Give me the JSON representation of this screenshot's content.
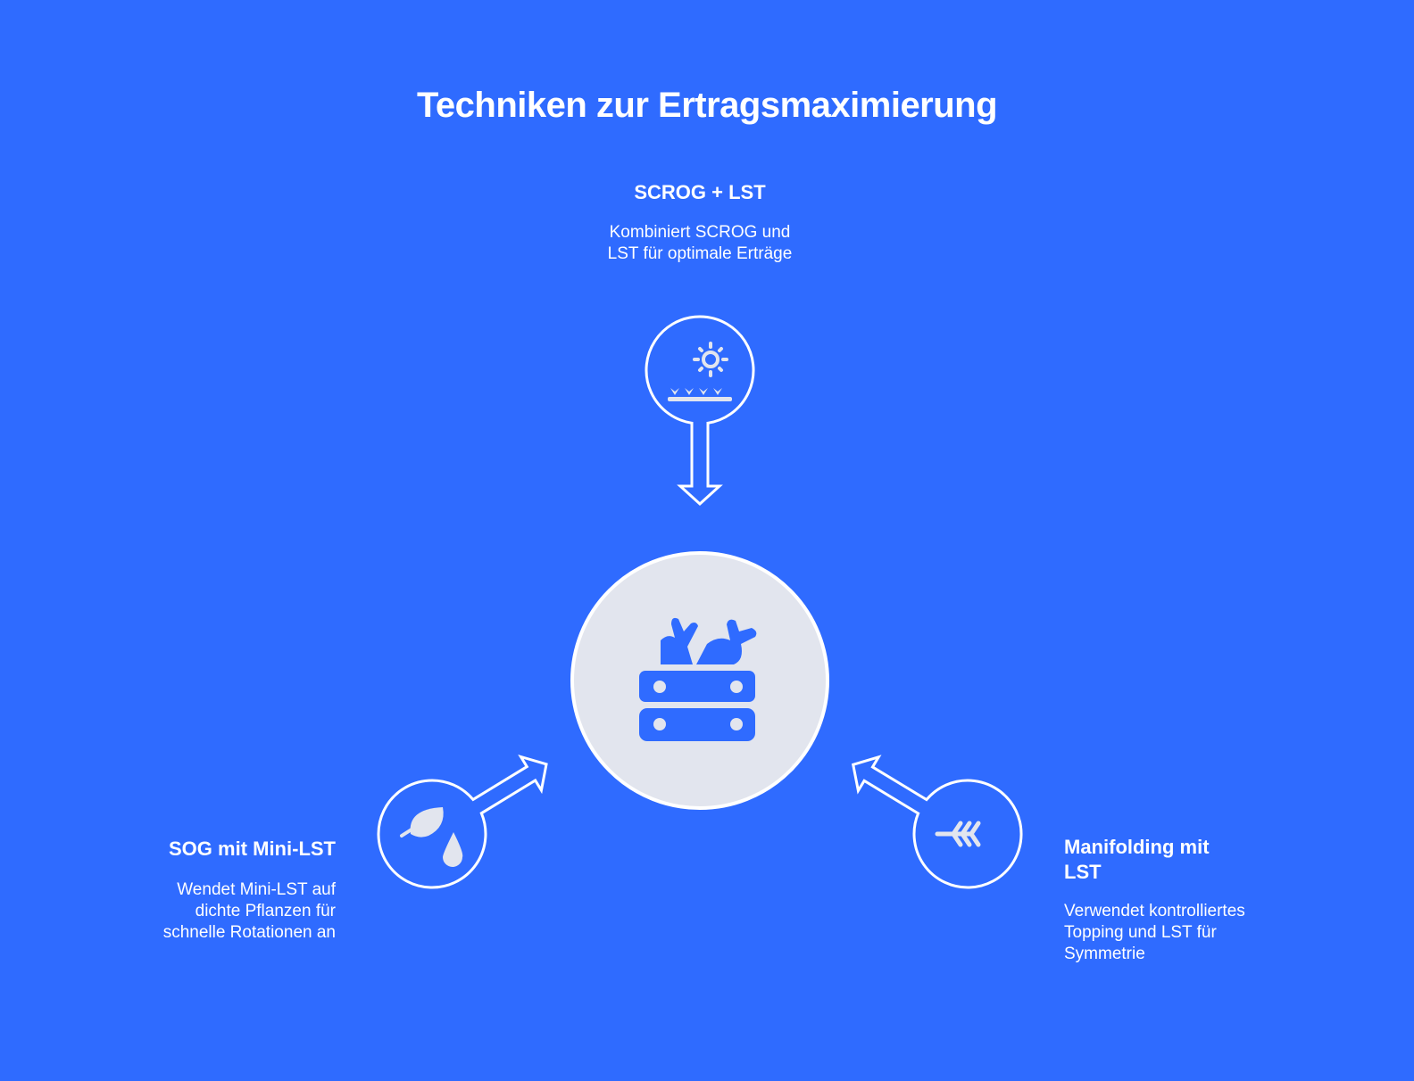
{
  "title": "Techniken zur Ertragsmaximierung",
  "colors": {
    "background": "#2F6BFF",
    "center_fill": "#E2E5EE",
    "stroke": "#FFFFFF"
  },
  "center": {
    "icon": "vegetable-crate-icon"
  },
  "nodes": [
    {
      "label": "SCROG + LST",
      "description": "Kombiniert SCROG und LST für optimale Erträge",
      "icon": "sun-over-plants-icon"
    },
    {
      "label": "SOG mit Mini-LST",
      "description": "Wendet Mini-LST auf dichte Pflanzen für schnelle Rotationen an",
      "icon": "leaf-water-drop-icon"
    },
    {
      "label": "Manifolding mit LST",
      "description": "Verwendet kontrolliertes Topping und LST für Symmetrie",
      "icon": "arrow-fletching-icon"
    }
  ]
}
